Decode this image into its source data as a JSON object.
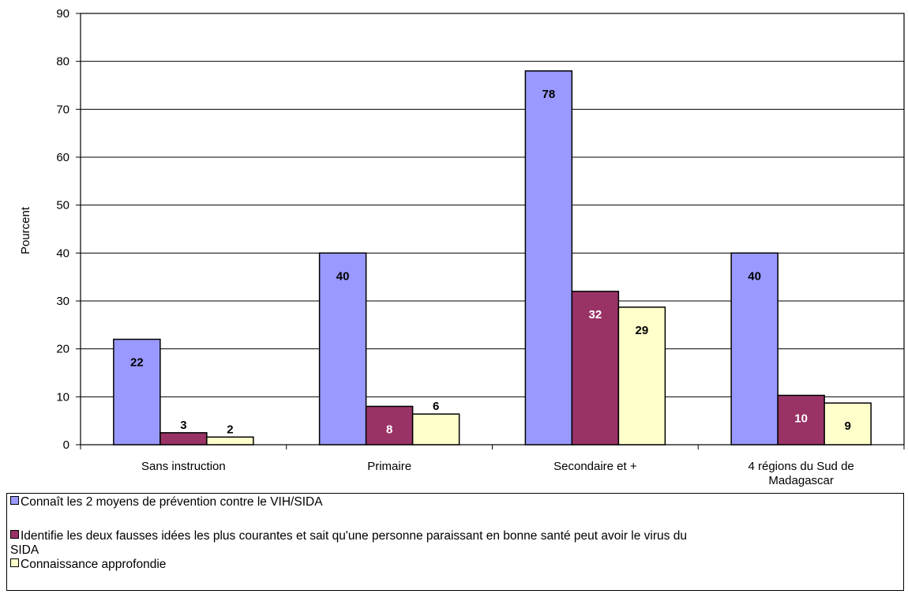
{
  "chart_data": {
    "type": "bar",
    "title": "",
    "xlabel": "",
    "ylabel": "Pourcent",
    "ylim": [
      0,
      90
    ],
    "yticks": [
      0,
      10,
      20,
      30,
      40,
      50,
      60,
      70,
      80,
      90
    ],
    "grid": true,
    "legend_position": "bottom",
    "categories": [
      [
        "Sans instruction"
      ],
      [
        "Primaire"
      ],
      [
        "Secondaire et +"
      ],
      [
        "4 régions du Sud de",
        "Madagascar"
      ]
    ],
    "series": [
      {
        "name": "Connaît les 2 moyens de prévention contre le VIH/SIDA",
        "color": "#9999ff",
        "label_color": "#000000",
        "values": [
          22,
          40,
          78,
          40
        ]
      },
      {
        "name": "Identifie les deux fausses idées les plus courantes et sait qu'une personne paraissant en bonne santé peut avoir le virus du SIDA",
        "color": "#993366",
        "label_color": "#ffffff",
        "values": [
          2.5,
          8,
          32,
          10.3
        ],
        "labels": [
          "3",
          "8",
          "32",
          "10"
        ]
      },
      {
        "name": "Connaissance approfondie",
        "color": "#ffffcc",
        "label_color": "#000000",
        "values": [
          1.6,
          6.4,
          28.7,
          8.7
        ],
        "labels": [
          "2",
          "6",
          "29",
          "9"
        ]
      }
    ]
  },
  "legend": {
    "line1": "Connaît les 2 moyens de prévention contre le VIH/SIDA",
    "line2a": "Identifie les deux fausses idées les plus courantes et sait qu'une personne paraissant en bonne santé peut avoir le virus du",
    "line2b": "SIDA",
    "line3": "Connaissance approfondie"
  }
}
